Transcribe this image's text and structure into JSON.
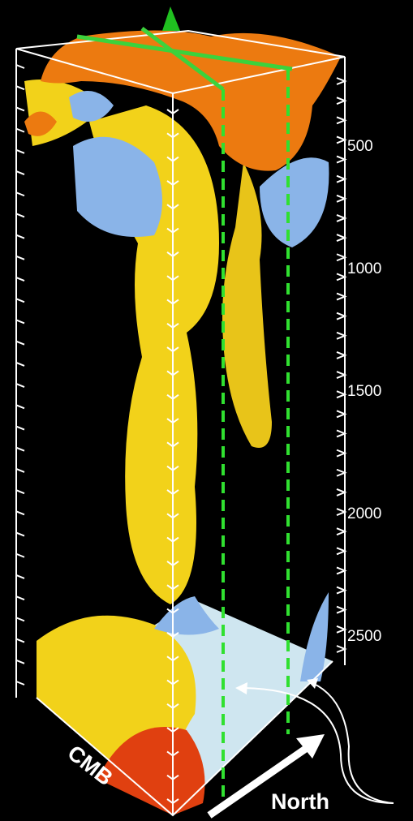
{
  "depth_axis": {
    "labels": [
      500,
      1000,
      1500,
      2000,
      2500
    ]
  },
  "bottom_label": "CMB",
  "direction_label": "North"
}
